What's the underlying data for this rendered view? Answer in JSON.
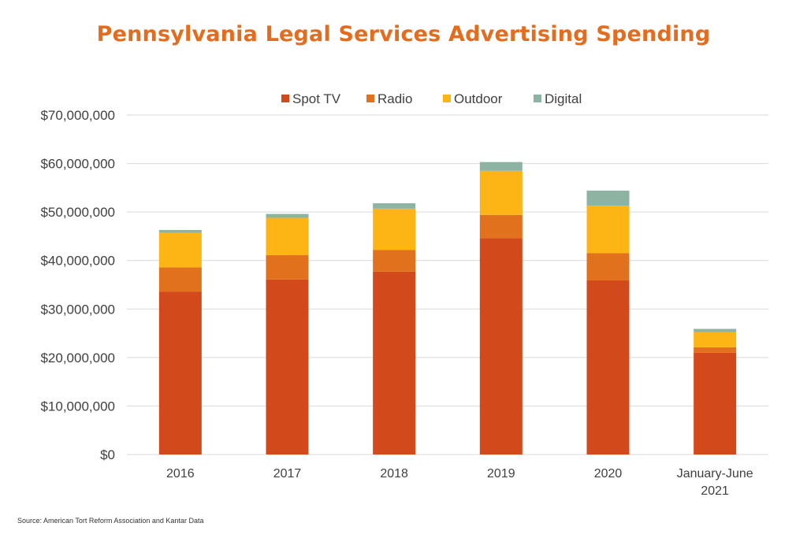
{
  "title": "Pennsylvania Legal Services Advertising Spending",
  "source": "Source: American Tort Reform Association and Kantar Data",
  "colors": {
    "title": "#e36c1e",
    "grid": "#d9d9d9",
    "axis_text": "#404040"
  },
  "chart_data": {
    "type": "bar",
    "stacked": true,
    "title": "Pennsylvania Legal Services Advertising Spending",
    "categories": [
      [
        "2016"
      ],
      [
        "2017"
      ],
      [
        "2018"
      ],
      [
        "2019"
      ],
      [
        "2020"
      ],
      [
        "January-June",
        "2021"
      ]
    ],
    "series": [
      {
        "name": "Spot TV",
        "color": "#d24a1b",
        "values": [
          33600000,
          36100000,
          37700000,
          44600000,
          35900000,
          21000000
        ]
      },
      {
        "name": "Radio",
        "color": "#e2711d",
        "values": [
          5000000,
          5000000,
          4500000,
          4800000,
          5600000,
          1100000
        ]
      },
      {
        "name": "Outdoor",
        "color": "#fdb515",
        "values": [
          7100000,
          7700000,
          8500000,
          9100000,
          9800000,
          3100000
        ]
      },
      {
        "name": "Digital",
        "color": "#8db3a2",
        "values": [
          600000,
          800000,
          1100000,
          1800000,
          3100000,
          700000
        ]
      }
    ],
    "ylim": [
      0,
      70000000
    ],
    "yticks": [
      0,
      10000000,
      20000000,
      30000000,
      40000000,
      50000000,
      60000000,
      70000000
    ],
    "ytick_labels": [
      "$0",
      "$10,000,000",
      "$20,000,000",
      "$30,000,000",
      "$40,000,000",
      "$50,000,000",
      "$60,000,000",
      "$70,000,000"
    ],
    "xlabel": "",
    "ylabel": "",
    "grid": true,
    "legend_position": "top-center"
  }
}
